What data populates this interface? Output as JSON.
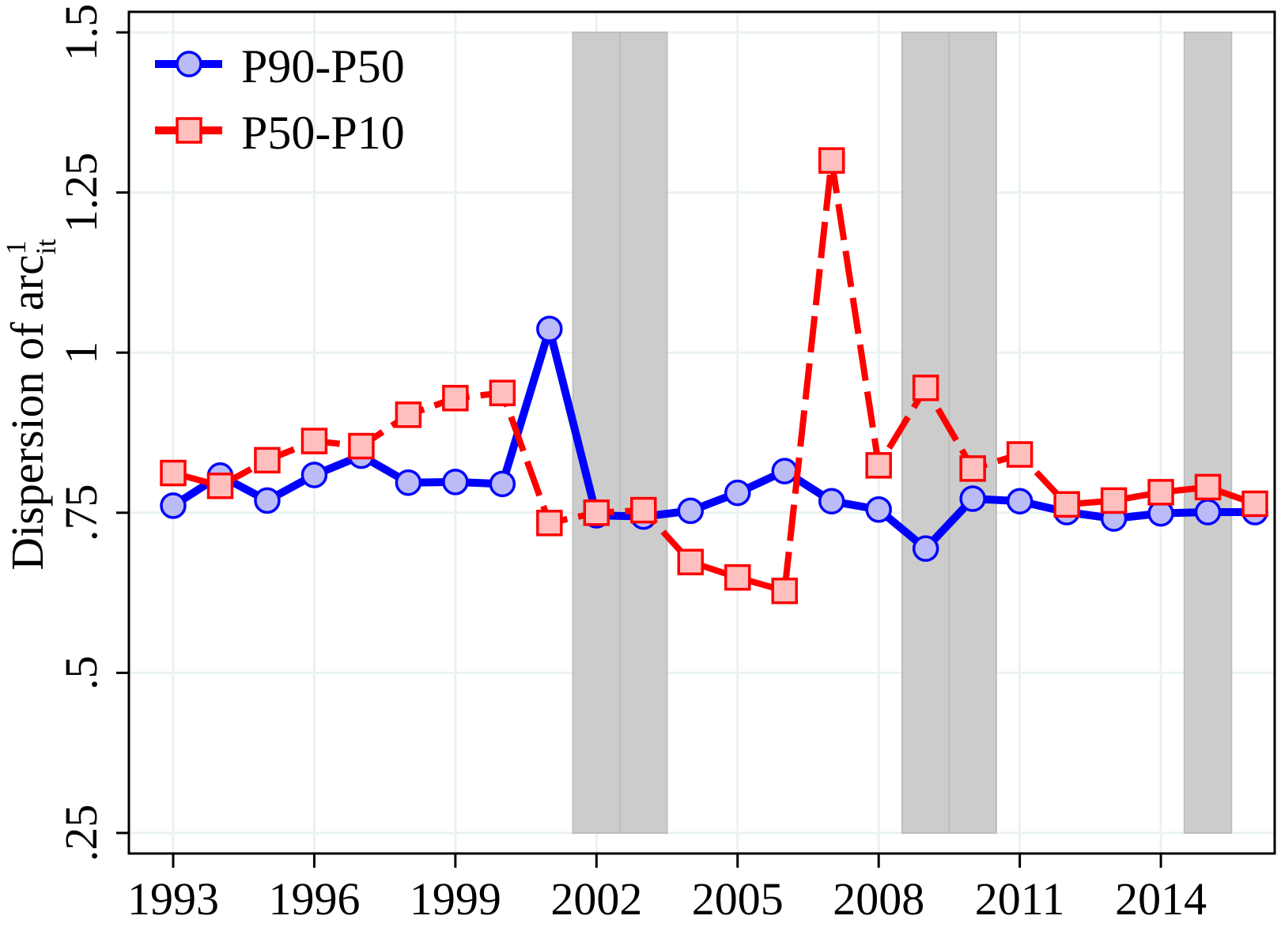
{
  "chart_data": {
    "type": "line",
    "title": "",
    "xlabel": "",
    "ylabel": "Dispersion of arc¹ᵢₜ",
    "ylabel_parts": {
      "base": "Dispersion of arc",
      "sup": "1",
      "sub": "it"
    },
    "x": [
      1993,
      1994,
      1995,
      1996,
      1997,
      1998,
      1999,
      2000,
      2001,
      2002,
      2003,
      2004,
      2005,
      2006,
      2007,
      2008,
      2009,
      2010,
      2011,
      2012,
      2013,
      2014,
      2015,
      2016
    ],
    "series": [
      {
        "name": "P90-P50",
        "color": "#0000ff",
        "marker": "circle",
        "marker_fill": "#bbbbf8",
        "line_style": "solid",
        "values": [
          0.761,
          0.808,
          0.769,
          0.809,
          0.839,
          0.797,
          0.798,
          0.795,
          1.037,
          0.746,
          0.744,
          0.753,
          0.781,
          0.815,
          0.768,
          0.755,
          0.694,
          0.772,
          0.768,
          0.751,
          0.741,
          0.749,
          0.751,
          0.751
        ]
      },
      {
        "name": "P50-P10",
        "color": "#ff0000",
        "marker": "square",
        "marker_fill": "#ffbfbf",
        "line_style": "dashed",
        "values": [
          0.812,
          0.792,
          0.832,
          0.862,
          0.854,
          0.903,
          0.929,
          0.937,
          0.734,
          0.75,
          0.754,
          0.673,
          0.649,
          0.628,
          1.3,
          0.824,
          0.945,
          0.819,
          0.841,
          0.763,
          0.769,
          0.782,
          0.79,
          0.764
        ]
      }
    ],
    "shaded_periods": [
      {
        "year": 2002,
        "from": 2001.5,
        "to": 2002.5
      },
      {
        "year": 2003,
        "from": 2002.5,
        "to": 2003.5
      },
      {
        "year": 2009,
        "from": 2008.5,
        "to": 2009.5
      },
      {
        "year": 2010,
        "from": 2009.5,
        "to": 2010.5
      },
      {
        "year": 2015,
        "from": 2014.5,
        "to": 2015.5
      }
    ],
    "shade_color": "#cccccc",
    "xticks": [
      1993,
      1996,
      1999,
      2002,
      2005,
      2008,
      2011,
      2014
    ],
    "xtick_labels": [
      "1993",
      "1996",
      "1999",
      "2002",
      "2005",
      "2008",
      "2011",
      "2014"
    ],
    "yticks": [
      0.25,
      0.5,
      0.75,
      1.0,
      1.25,
      1.5
    ],
    "ytick_labels": [
      ".25",
      ".5",
      ".75",
      "1",
      "1.25",
      "1.5"
    ],
    "ylim": [
      0.25,
      1.5
    ],
    "xlim": [
      1992.25,
      2016.4
    ],
    "grid": true,
    "grid_color": "#eaf2f3",
    "legend_position": "upper-left-inside"
  }
}
